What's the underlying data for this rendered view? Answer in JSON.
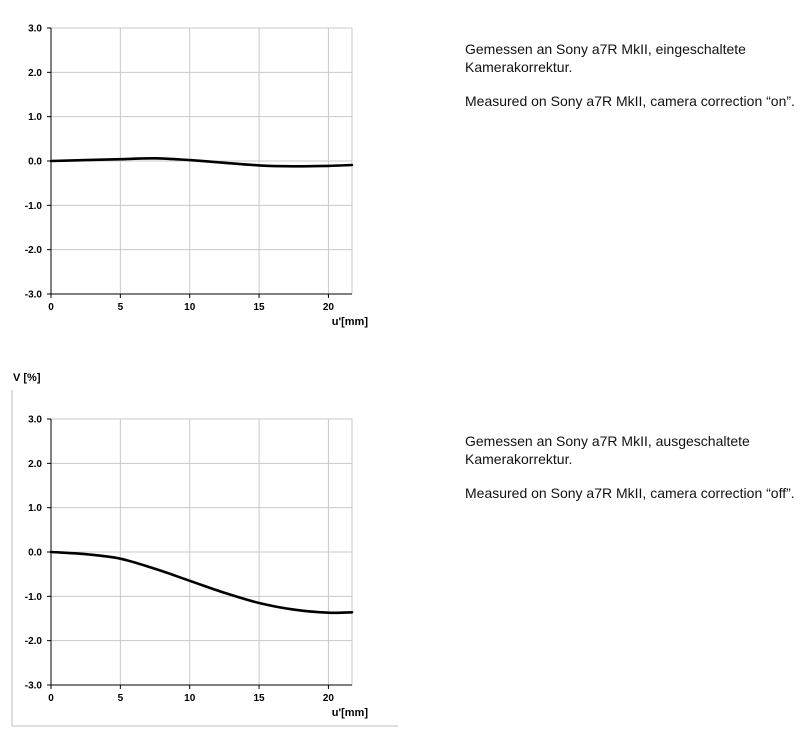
{
  "chart_data": [
    {
      "type": "line",
      "title": "",
      "ylabel": "",
      "xlabel": "u'[mm]",
      "xlim": [
        0,
        21.7
      ],
      "ylim": [
        -3.0,
        3.0
      ],
      "x_ticks": [
        0,
        5,
        10,
        15,
        20
      ],
      "y_ticks": [
        3.0,
        2.0,
        1.0,
        0.0,
        -1.0,
        -2.0,
        -3.0
      ],
      "x_tick_labels": [
        "0",
        "5",
        "10",
        "15",
        "20"
      ],
      "y_tick_labels": [
        "3.0",
        "2.0",
        "1.0",
        "0.0",
        "-1.0",
        "-2.0",
        "-3.0"
      ],
      "grid": true,
      "series": [
        {
          "x": [
            0,
            2.5,
            5,
            7.5,
            10,
            12.5,
            15,
            17.5,
            20,
            21.7
          ],
          "y": [
            0.0,
            0.02,
            0.04,
            0.06,
            0.02,
            -0.04,
            -0.1,
            -0.12,
            -0.11,
            -0.09
          ]
        }
      ]
    },
    {
      "type": "line",
      "title": "",
      "ylabel": "V [%]",
      "xlabel": "u'[mm]",
      "xlim": [
        0,
        21.7
      ],
      "ylim": [
        -3.0,
        3.0
      ],
      "x_ticks": [
        0,
        5,
        10,
        15,
        20
      ],
      "y_ticks": [
        3.0,
        2.0,
        1.0,
        0.0,
        -1.0,
        -2.0,
        -3.0
      ],
      "x_tick_labels": [
        "0",
        "5",
        "10",
        "15",
        "20"
      ],
      "y_tick_labels": [
        "3.0",
        "2.0",
        "1.0",
        "0.0",
        "-1.0",
        "-2.0",
        "-3.0"
      ],
      "grid": true,
      "series": [
        {
          "x": [
            0,
            2.5,
            5,
            7.5,
            10,
            12.5,
            15,
            17.5,
            20,
            21.7
          ],
          "y": [
            0.0,
            -0.05,
            -0.15,
            -0.38,
            -0.65,
            -0.92,
            -1.15,
            -1.3,
            -1.37,
            -1.36
          ]
        }
      ]
    }
  ],
  "notes": {
    "top": {
      "de": "Gemessen an Sony a7R MkII, eingeschaltete Kamerakorrektur.",
      "en": "Measured on Sony a7R MkII, camera correction “on”."
    },
    "bottom": {
      "de": "Gemessen an Sony a7R MkII, ausgeschaltete Kamerakorrektur.",
      "en": "Measured on Sony a7R MkII, camera correction “off”."
    }
  },
  "colors": {
    "grid": "#c8c8c8",
    "line": "#000000",
    "border": "#bdbdbd"
  }
}
